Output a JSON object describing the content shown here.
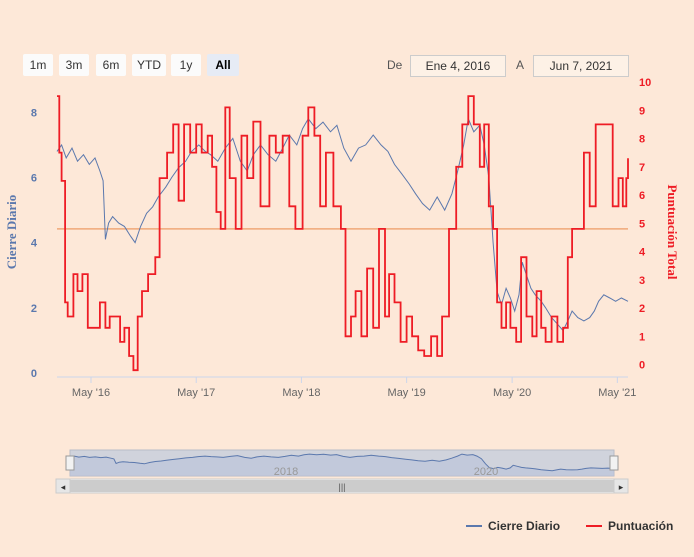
{
  "range_selector": {
    "buttons": [
      "1m",
      "3m",
      "6m",
      "YTD",
      "1y",
      "All"
    ],
    "active": "All",
    "from_label": "De",
    "from_value": "Ene 4, 2016",
    "to_label": "A",
    "to_value": "Jun 7, 2021"
  },
  "navigator": {
    "year_labels": [
      "2018",
      "2020"
    ],
    "scrollbar_grip": "|||",
    "left_arrow": "◂",
    "right_arrow": "▸"
  },
  "legend": {
    "items": [
      {
        "label": "Cierre Diario",
        "color": "#5b78ad"
      },
      {
        "label": "Puntuación",
        "color": "#ee1c25"
      }
    ]
  },
  "chart_data": {
    "type": "line",
    "x_range": [
      "2016-01-04",
      "2021-06-07"
    ],
    "x_ticks": [
      {
        "date": "2016-05-01",
        "label": "May '16"
      },
      {
        "date": "2017-05-01",
        "label": "May '17"
      },
      {
        "date": "2018-05-01",
        "label": "May '18"
      },
      {
        "date": "2019-05-01",
        "label": "May '19"
      },
      {
        "date": "2020-05-01",
        "label": "May '20"
      },
      {
        "date": "2021-05-01",
        "label": "May '21"
      }
    ],
    "y_left": {
      "label": "Cierre Diario",
      "ticks": [
        "0",
        "2",
        "4",
        "6",
        "8"
      ],
      "range": [
        0,
        8.5
      ],
      "color": "#5b78ad"
    },
    "y_right": {
      "label": "Puntuación Total",
      "ticks": [
        "0",
        "1",
        "2",
        "3",
        "4",
        "5",
        "6",
        "7",
        "8",
        "9",
        "10"
      ],
      "range": [
        -0.3,
        10
      ],
      "color": "#ee1c25"
    },
    "reference_line": {
      "axis": "right",
      "value": 4.8,
      "color": "#f0a878"
    },
    "series": [
      {
        "name": "Cierre Diario",
        "axis": "left",
        "color": "#5b78ad",
        "points": [
          [
            "2016-01-04",
            6.8
          ],
          [
            "2016-01-20",
            7.0
          ],
          [
            "2016-02-05",
            6.6
          ],
          [
            "2016-02-25",
            6.9
          ],
          [
            "2016-03-15",
            6.5
          ],
          [
            "2016-04-05",
            6.7
          ],
          [
            "2016-04-25",
            6.4
          ],
          [
            "2016-05-15",
            6.6
          ],
          [
            "2016-06-01",
            6.2
          ],
          [
            "2016-06-12",
            5.9
          ],
          [
            "2016-06-20",
            4.1
          ],
          [
            "2016-07-01",
            4.6
          ],
          [
            "2016-07-15",
            4.8
          ],
          [
            "2016-08-05",
            4.6
          ],
          [
            "2016-08-25",
            4.5
          ],
          [
            "2016-09-15",
            4.2
          ],
          [
            "2016-10-01",
            4.0
          ],
          [
            "2016-10-20",
            4.5
          ],
          [
            "2016-11-10",
            4.9
          ],
          [
            "2016-12-01",
            5.1
          ],
          [
            "2016-12-20",
            5.4
          ],
          [
            "2017-01-15",
            5.7
          ],
          [
            "2017-02-05",
            6.0
          ],
          [
            "2017-03-01",
            6.3
          ],
          [
            "2017-03-25",
            6.5
          ],
          [
            "2017-04-15",
            6.8
          ],
          [
            "2017-05-10",
            7.0
          ],
          [
            "2017-06-01",
            6.8
          ],
          [
            "2017-06-20",
            6.7
          ],
          [
            "2017-07-15",
            6.5
          ],
          [
            "2017-08-10",
            6.9
          ],
          [
            "2017-09-05",
            7.2
          ],
          [
            "2017-10-01",
            6.5
          ],
          [
            "2017-10-25",
            6.2
          ],
          [
            "2017-11-15",
            6.7
          ],
          [
            "2017-12-10",
            7.0
          ],
          [
            "2018-01-05",
            6.7
          ],
          [
            "2018-02-01",
            6.5
          ],
          [
            "2018-02-25",
            6.9
          ],
          [
            "2018-03-20",
            7.3
          ],
          [
            "2018-04-15",
            7.0
          ],
          [
            "2018-05-05",
            7.5
          ],
          [
            "2018-05-25",
            7.8
          ],
          [
            "2018-06-20",
            7.5
          ],
          [
            "2018-07-15",
            7.7
          ],
          [
            "2018-08-10",
            7.4
          ],
          [
            "2018-09-01",
            7.6
          ],
          [
            "2018-09-25",
            6.9
          ],
          [
            "2018-10-20",
            6.5
          ],
          [
            "2018-11-15",
            6.9
          ],
          [
            "2018-12-10",
            7.0
          ],
          [
            "2019-01-05",
            7.3
          ],
          [
            "2019-02-01",
            7.0
          ],
          [
            "2019-02-25",
            6.8
          ],
          [
            "2019-03-20",
            6.4
          ],
          [
            "2019-04-15",
            6.1
          ],
          [
            "2019-05-10",
            5.8
          ],
          [
            "2019-06-01",
            5.5
          ],
          [
            "2019-06-25",
            5.2
          ],
          [
            "2019-07-20",
            5.0
          ],
          [
            "2019-08-15",
            5.4
          ],
          [
            "2019-09-10",
            5.0
          ],
          [
            "2019-10-05",
            5.5
          ],
          [
            "2019-10-25",
            6.2
          ],
          [
            "2019-11-15",
            7.0
          ],
          [
            "2019-12-01",
            7.8
          ],
          [
            "2019-12-20",
            7.4
          ],
          [
            "2020-01-10",
            7.6
          ],
          [
            "2020-01-25",
            7.0
          ],
          [
            "2020-02-10",
            6.0
          ],
          [
            "2020-02-25",
            4.0
          ],
          [
            "2020-03-10",
            2.5
          ],
          [
            "2020-03-25",
            2.1
          ],
          [
            "2020-04-10",
            2.6
          ],
          [
            "2020-04-25",
            2.3
          ],
          [
            "2020-05-10",
            1.9
          ],
          [
            "2020-05-25",
            2.4
          ],
          [
            "2020-06-05",
            3.4
          ],
          [
            "2020-06-20",
            3.0
          ],
          [
            "2020-07-05",
            2.6
          ],
          [
            "2020-07-20",
            2.4
          ],
          [
            "2020-08-10",
            2.2
          ],
          [
            "2020-08-25",
            2.0
          ],
          [
            "2020-09-15",
            1.7
          ],
          [
            "2020-10-05",
            1.5
          ],
          [
            "2020-10-25",
            1.3
          ],
          [
            "2020-11-10",
            1.6
          ],
          [
            "2020-11-25",
            1.9
          ],
          [
            "2020-12-15",
            1.7
          ],
          [
            "2021-01-05",
            1.6
          ],
          [
            "2021-01-25",
            1.7
          ],
          [
            "2021-02-10",
            1.9
          ],
          [
            "2021-02-25",
            2.2
          ],
          [
            "2021-03-15",
            2.4
          ],
          [
            "2021-04-05",
            2.3
          ],
          [
            "2021-04-25",
            2.2
          ],
          [
            "2021-05-15",
            2.3
          ],
          [
            "2021-06-07",
            2.2
          ]
        ]
      },
      {
        "name": "Puntuación",
        "axis": "right",
        "color": "#ee1c25",
        "points": [
          [
            "2016-01-04",
            9.5
          ],
          [
            "2016-01-12",
            7.5
          ],
          [
            "2016-01-20",
            6.5
          ],
          [
            "2016-02-01",
            2.2
          ],
          [
            "2016-02-10",
            1.7
          ],
          [
            "2016-03-01",
            3.2
          ],
          [
            "2016-03-15",
            2.6
          ],
          [
            "2016-04-01",
            3.2
          ],
          [
            "2016-04-20",
            1.3
          ],
          [
            "2016-05-15",
            1.3
          ],
          [
            "2016-06-01",
            2.2
          ],
          [
            "2016-06-20",
            1.3
          ],
          [
            "2016-07-05",
            1.7
          ],
          [
            "2016-07-25",
            1.7
          ],
          [
            "2016-08-10",
            0.8
          ],
          [
            "2016-08-25",
            1.3
          ],
          [
            "2016-09-10",
            0.3
          ],
          [
            "2016-09-25",
            -0.2
          ],
          [
            "2016-10-10",
            1.7
          ],
          [
            "2016-10-25",
            2.6
          ],
          [
            "2016-11-15",
            3.2
          ],
          [
            "2016-12-10",
            3.8
          ],
          [
            "2016-12-25",
            6.6
          ],
          [
            "2017-01-20",
            7.5
          ],
          [
            "2017-02-10",
            8.5
          ],
          [
            "2017-03-01",
            5.8
          ],
          [
            "2017-03-20",
            8.5
          ],
          [
            "2017-04-10",
            7.5
          ],
          [
            "2017-05-01",
            8.5
          ],
          [
            "2017-05-20",
            7.5
          ],
          [
            "2017-06-10",
            8.1
          ],
          [
            "2017-06-25",
            7.0
          ],
          [
            "2017-07-10",
            5.4
          ],
          [
            "2017-07-25",
            4.8
          ],
          [
            "2017-08-10",
            9.1
          ],
          [
            "2017-08-25",
            6.6
          ],
          [
            "2017-09-15",
            4.8
          ],
          [
            "2017-10-05",
            8.1
          ],
          [
            "2017-10-25",
            6.6
          ],
          [
            "2017-11-15",
            8.6
          ],
          [
            "2017-12-10",
            5.6
          ],
          [
            "2018-01-10",
            8.1
          ],
          [
            "2018-02-01",
            7.5
          ],
          [
            "2018-02-25",
            8.1
          ],
          [
            "2018-03-20",
            5.6
          ],
          [
            "2018-04-10",
            4.8
          ],
          [
            "2018-05-05",
            8.1
          ],
          [
            "2018-05-25",
            9.1
          ],
          [
            "2018-06-15",
            8.1
          ],
          [
            "2018-07-05",
            5.6
          ],
          [
            "2018-07-25",
            7.5
          ],
          [
            "2018-08-20",
            5.6
          ],
          [
            "2018-09-15",
            4.8
          ],
          [
            "2018-10-01",
            1.0
          ],
          [
            "2018-10-20",
            1.7
          ],
          [
            "2018-11-05",
            2.6
          ],
          [
            "2018-11-25",
            1.0
          ],
          [
            "2018-12-15",
            3.4
          ],
          [
            "2019-01-05",
            1.3
          ],
          [
            "2019-01-25",
            4.8
          ],
          [
            "2019-02-15",
            1.7
          ],
          [
            "2019-03-01",
            3.2
          ],
          [
            "2019-03-20",
            2.2
          ],
          [
            "2019-04-10",
            0.8
          ],
          [
            "2019-05-01",
            1.7
          ],
          [
            "2019-05-20",
            1.0
          ],
          [
            "2019-06-10",
            0.5
          ],
          [
            "2019-07-01",
            0.3
          ],
          [
            "2019-07-25",
            1.0
          ],
          [
            "2019-08-15",
            0.3
          ],
          [
            "2019-09-01",
            1.7
          ],
          [
            "2019-09-25",
            4.8
          ],
          [
            "2019-10-20",
            7.0
          ],
          [
            "2019-11-10",
            8.5
          ],
          [
            "2019-12-01",
            9.5
          ],
          [
            "2019-12-20",
            8.5
          ],
          [
            "2020-01-10",
            7.0
          ],
          [
            "2020-01-25",
            8.5
          ],
          [
            "2020-02-10",
            5.6
          ],
          [
            "2020-02-25",
            4.8
          ],
          [
            "2020-03-10",
            2.2
          ],
          [
            "2020-03-25",
            1.3
          ],
          [
            "2020-04-10",
            2.2
          ],
          [
            "2020-04-25",
            1.3
          ],
          [
            "2020-05-15",
            0.8
          ],
          [
            "2020-06-01",
            3.8
          ],
          [
            "2020-06-20",
            1.7
          ],
          [
            "2020-07-10",
            1.0
          ],
          [
            "2020-07-25",
            2.6
          ],
          [
            "2020-08-10",
            1.3
          ],
          [
            "2020-08-25",
            0.8
          ],
          [
            "2020-09-15",
            1.7
          ],
          [
            "2020-10-05",
            0.8
          ],
          [
            "2020-10-25",
            1.3
          ],
          [
            "2020-11-10",
            3.8
          ],
          [
            "2020-11-25",
            4.8
          ],
          [
            "2020-12-15",
            4.8
          ],
          [
            "2021-01-05",
            7.5
          ],
          [
            "2021-01-25",
            5.6
          ],
          [
            "2021-02-15",
            8.5
          ],
          [
            "2021-03-15",
            8.5
          ],
          [
            "2021-04-15",
            5.6
          ],
          [
            "2021-05-05",
            6.6
          ],
          [
            "2021-05-20",
            5.6
          ],
          [
            "2021-06-01",
            6.6
          ],
          [
            "2021-06-07",
            7.3
          ]
        ]
      }
    ],
    "navigator_series": "Cierre Diario",
    "legend_position": "bottom-right",
    "grid": false
  }
}
